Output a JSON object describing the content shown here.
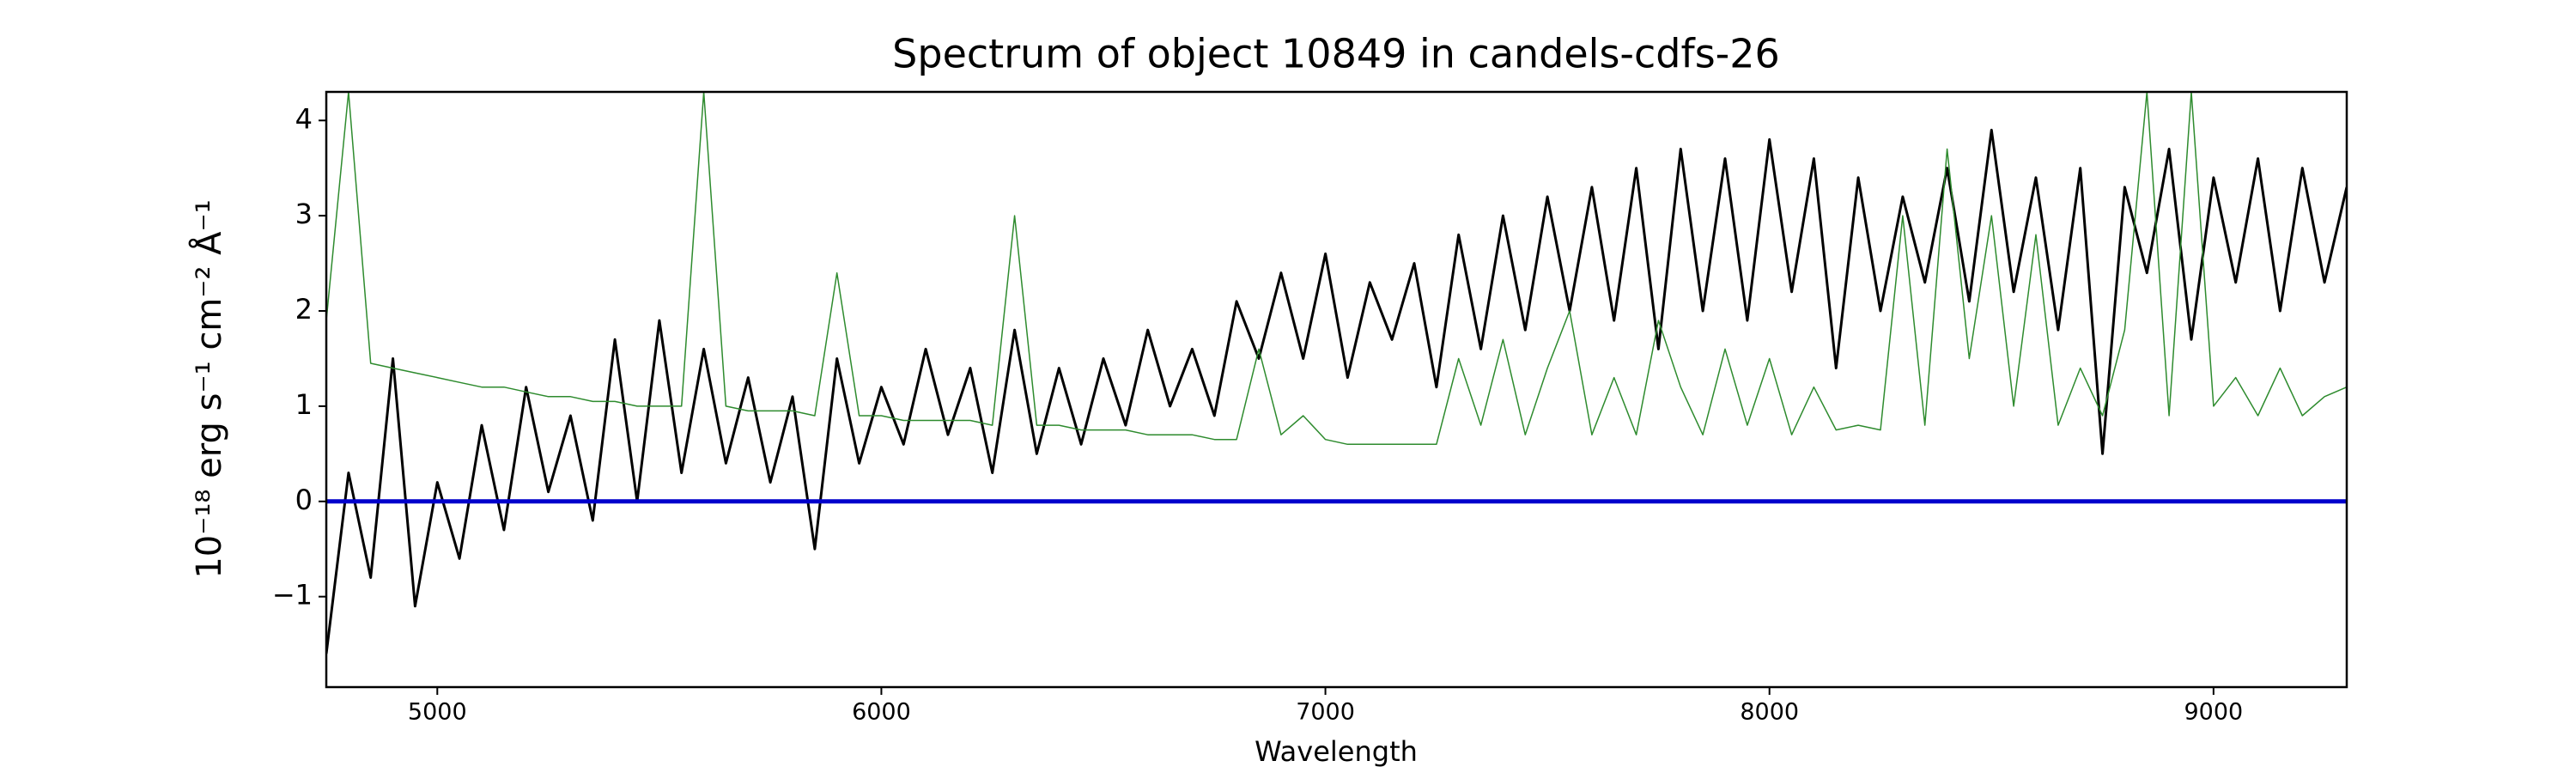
{
  "chart_data": {
    "type": "line",
    "title": "Spectrum of object 10849 in candels-cdfs-26",
    "xlabel": "Wavelength",
    "ylabel": "10⁻¹⁸ erg s⁻¹ cm⁻² Å⁻¹",
    "xlim": [
      4750,
      9300
    ],
    "ylim": [
      -1.95,
      4.3
    ],
    "xticks": [
      5000,
      6000,
      7000,
      8000,
      9000
    ],
    "yticks": [
      {
        "value": -1,
        "label": "−1"
      },
      0,
      1,
      2,
      3,
      4
    ],
    "grid": false,
    "x": [
      4750,
      4800,
      4850,
      4900,
      4950,
      5000,
      5050,
      5100,
      5150,
      5200,
      5250,
      5300,
      5350,
      5400,
      5450,
      5500,
      5550,
      5600,
      5650,
      5700,
      5750,
      5800,
      5850,
      5900,
      5950,
      6000,
      6050,
      6100,
      6150,
      6200,
      6250,
      6300,
      6350,
      6400,
      6450,
      6500,
      6550,
      6600,
      6650,
      6700,
      6750,
      6800,
      6850,
      6900,
      6950,
      7000,
      7050,
      7100,
      7150,
      7200,
      7250,
      7300,
      7350,
      7400,
      7450,
      7500,
      7550,
      7600,
      7650,
      7700,
      7750,
      7800,
      7850,
      7900,
      7950,
      8000,
      8050,
      8100,
      8150,
      8200,
      8250,
      8300,
      8350,
      8400,
      8450,
      8500,
      8550,
      8600,
      8650,
      8700,
      8750,
      8800,
      8850,
      8900,
      8950,
      9000,
      9050,
      9100,
      9150,
      9200,
      9250,
      9300
    ],
    "series": [
      {
        "color": "#000000",
        "width": 3,
        "values": [
          -1.6,
          0.3,
          -0.8,
          1.5,
          -1.1,
          0.2,
          -0.6,
          0.8,
          -0.3,
          1.2,
          0.1,
          0.9,
          -0.2,
          1.7,
          0.0,
          1.9,
          0.3,
          1.6,
          0.4,
          1.3,
          0.2,
          1.1,
          -0.5,
          1.5,
          0.4,
          1.2,
          0.6,
          1.6,
          0.7,
          1.4,
          0.3,
          1.8,
          0.5,
          1.4,
          0.6,
          1.5,
          0.8,
          1.8,
          1.0,
          1.6,
          0.9,
          2.1,
          1.5,
          2.4,
          1.5,
          2.6,
          1.3,
          2.3,
          1.7,
          2.5,
          1.2,
          2.8,
          1.6,
          3.0,
          1.8,
          3.2,
          2.0,
          3.3,
          1.9,
          3.5,
          1.6,
          3.7,
          2.0,
          3.6,
          1.9,
          3.8,
          2.2,
          3.6,
          1.4,
          3.4,
          2.0,
          3.2,
          2.3,
          3.5,
          2.1,
          3.9,
          2.2,
          3.4,
          1.8,
          3.5,
          0.5,
          3.3,
          2.4,
          3.7,
          1.7,
          3.4,
          2.3,
          3.6,
          2.0,
          3.5,
          2.3,
          3.3
        ]
      },
      {
        "color": "#2e8b2e",
        "width": 1.5,
        "values": [
          1.9,
          4.3,
          1.45,
          1.4,
          1.35,
          1.3,
          1.25,
          1.2,
          1.2,
          1.15,
          1.1,
          1.1,
          1.05,
          1.05,
          1.0,
          1.0,
          1.0,
          4.3,
          1.0,
          0.95,
          0.95,
          0.95,
          0.9,
          2.4,
          0.9,
          0.9,
          0.85,
          0.85,
          0.85,
          0.85,
          0.8,
          3.0,
          0.8,
          0.8,
          0.75,
          0.75,
          0.75,
          0.7,
          0.7,
          0.7,
          0.65,
          0.65,
          1.6,
          0.7,
          0.9,
          0.65,
          0.6,
          0.6,
          0.6,
          0.6,
          0.6,
          1.5,
          0.8,
          1.7,
          0.7,
          1.4,
          2.0,
          0.7,
          1.3,
          0.7,
          1.9,
          1.2,
          0.7,
          1.6,
          0.8,
          1.5,
          0.7,
          1.2,
          0.75,
          0.8,
          0.75,
          3.0,
          0.8,
          3.7,
          1.5,
          3.0,
          1.0,
          2.8,
          0.8,
          1.4,
          0.9,
          1.8,
          4.3,
          0.9,
          4.3,
          1.0,
          1.3,
          0.9,
          1.4,
          0.9,
          1.1,
          1.2
        ]
      },
      {
        "color": "#0000cc",
        "width": 5,
        "x": [
          4750,
          9300
        ],
        "values": [
          0,
          0
        ]
      }
    ]
  }
}
